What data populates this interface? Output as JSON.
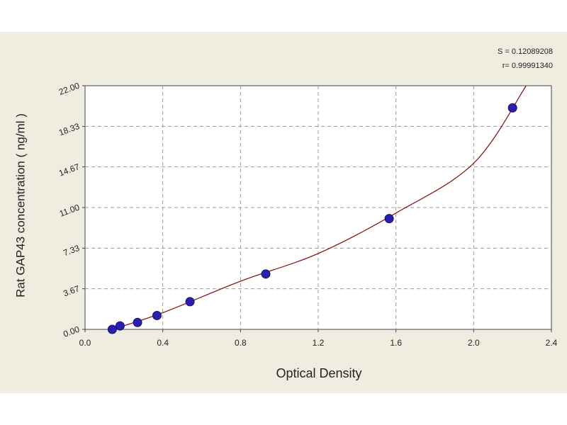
{
  "chart_data": {
    "type": "scatter",
    "x_label": "Optical Density",
    "y_label": "Rat  GAP43 concentration ( ng/ml )",
    "annotations": [
      "S = 0.12089208",
      "r= 0.99991340"
    ],
    "points": {
      "color": "#2b1fb0",
      "x": [
        0.14,
        0.18,
        0.27,
        0.37,
        0.54,
        0.93,
        1.565,
        2.2
      ],
      "y": [
        0,
        0.31,
        0.62,
        1.25,
        2.5,
        5,
        10,
        20
      ]
    },
    "fit": {
      "color": "#8b1a1a",
      "x": [
        0.14,
        0.4,
        0.8,
        1.2,
        1.6,
        2.0,
        2.27
      ],
      "y": [
        0,
        1.5,
        4.35,
        6.85,
        10.5,
        15.0,
        22
      ]
    },
    "xlim": [
      0,
      2.4
    ],
    "ylim": [
      0,
      22
    ],
    "xticks": [
      {
        "value": 0,
        "label": "0.0"
      },
      0.4,
      0.8,
      {
        "value": 1.2,
        "label": "1.2"
      },
      {
        "value": 1.6,
        "label": "1.6"
      },
      {
        "value": 2,
        "label": "2.0"
      },
      2.4
    ],
    "yticks": [
      {
        "value": 0,
        "label": "0.00"
      },
      3.67,
      7.33,
      {
        "value": 11,
        "label": "11.00"
      },
      14.67,
      18.33,
      {
        "value": 22,
        "label": "22.00"
      }
    ],
    "grid": true
  }
}
